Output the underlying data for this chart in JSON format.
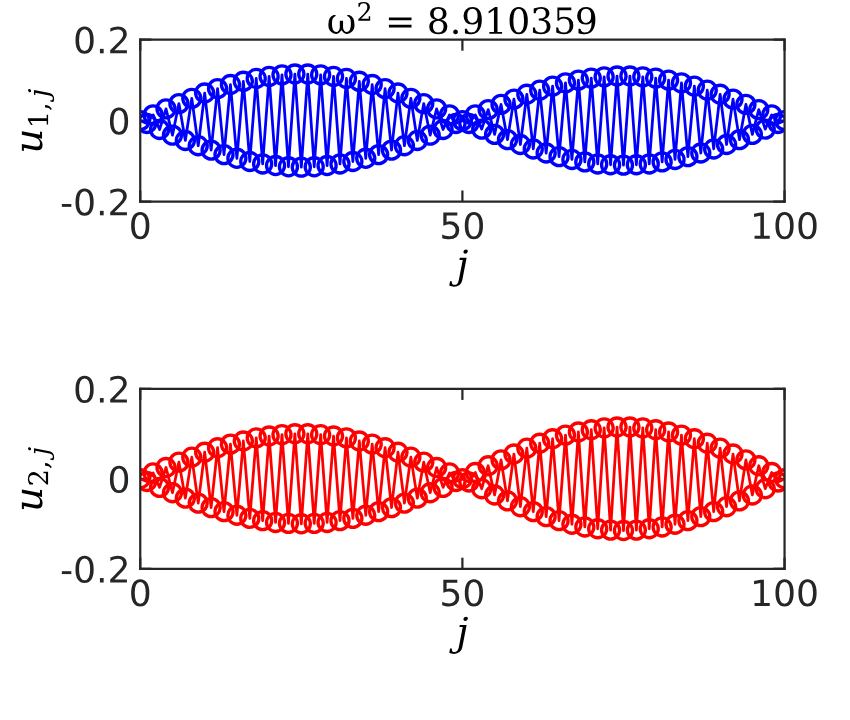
{
  "chart_data": [
    {
      "type": "line",
      "title": "ω$^{2}$ = 8.910359",
      "xlabel": "j",
      "ylabel": "u$_{1,j}$",
      "xlim": [
        0,
        100
      ],
      "ylim": [
        -0.2,
        0.2
      ],
      "xticks": [
        0,
        50,
        100
      ],
      "yticks": [
        -0.2,
        0,
        0.2
      ],
      "marker": "circle",
      "line_style": "solid",
      "grid": false,
      "x": [
        0,
        1,
        2,
        3,
        4,
        5,
        6,
        7,
        8,
        9,
        10,
        11,
        12,
        13,
        14,
        15,
        16,
        17,
        18,
        19,
        20,
        21,
        22,
        23,
        24,
        25,
        26,
        27,
        28,
        29,
        30,
        31,
        32,
        33,
        34,
        35,
        36,
        37,
        38,
        39,
        40,
        41,
        42,
        43,
        44,
        45,
        46,
        47,
        48,
        49,
        50,
        51,
        52,
        53,
        54,
        55,
        56,
        57,
        58,
        59,
        60,
        61,
        62,
        63,
        64,
        65,
        66,
        67,
        68,
        69,
        70,
        71,
        72,
        73,
        74,
        75,
        76,
        77,
        78,
        79,
        80,
        81,
        82,
        83,
        84,
        85,
        86,
        87,
        88,
        89,
        90,
        91,
        92,
        93,
        94,
        95,
        96,
        97,
        98,
        99,
        100
      ],
      "series": [
        {
          "color": "#0000ff",
          "values": [
            0,
            -0.007,
            0.014,
            -0.022,
            0.029,
            -0.036,
            0.042,
            -0.049,
            0.055,
            -0.062,
            0.068,
            -0.073,
            0.079,
            -0.084,
            0.089,
            -0.093,
            0.097,
            -0.101,
            0.104,
            -0.107,
            0.109,
            -0.111,
            0.113,
            -0.114,
            0.115,
            -0.115,
            0.115,
            -0.114,
            0.113,
            -0.111,
            0.109,
            -0.107,
            0.104,
            -0.101,
            0.097,
            -0.093,
            0.089,
            -0.084,
            0.079,
            -0.073,
            0.068,
            -0.062,
            0.055,
            -0.049,
            0.042,
            -0.036,
            0.029,
            -0.022,
            0.014,
            -0.007,
            0,
            -0.007,
            0.014,
            -0.021,
            0.027,
            -0.034,
            0.04,
            -0.047,
            0.053,
            -0.059,
            0.065,
            -0.07,
            0.075,
            -0.08,
            0.085,
            -0.089,
            0.093,
            -0.096,
            0.1,
            -0.102,
            0.105,
            -0.107,
            0.108,
            -0.109,
            0.11,
            -0.11,
            0.11,
            -0.109,
            0.108,
            -0.107,
            0.105,
            -0.102,
            0.1,
            -0.096,
            0.093,
            -0.089,
            0.085,
            -0.08,
            0.075,
            -0.07,
            0.065,
            -0.059,
            0.053,
            -0.047,
            0.04,
            -0.034,
            0.027,
            -0.021,
            0.014,
            -0.007,
            0
          ]
        }
      ]
    },
    {
      "type": "line",
      "xlabel": "j",
      "ylabel": "u$_{2,j}$",
      "xlim": [
        0,
        100
      ],
      "ylim": [
        -0.2,
        0.2
      ],
      "xticks": [
        0,
        50,
        100
      ],
      "yticks": [
        -0.2,
        0,
        0.2
      ],
      "marker": "circle",
      "line_style": "solid",
      "grid": false,
      "x": [
        0,
        1,
        2,
        3,
        4,
        5,
        6,
        7,
        8,
        9,
        10,
        11,
        12,
        13,
        14,
        15,
        16,
        17,
        18,
        19,
        20,
        21,
        22,
        23,
        24,
        25,
        26,
        27,
        28,
        29,
        30,
        31,
        32,
        33,
        34,
        35,
        36,
        37,
        38,
        39,
        40,
        41,
        42,
        43,
        44,
        45,
        46,
        47,
        48,
        49,
        50,
        51,
        52,
        53,
        54,
        55,
        56,
        57,
        58,
        59,
        60,
        61,
        62,
        63,
        64,
        65,
        66,
        67,
        68,
        69,
        70,
        71,
        72,
        73,
        74,
        75,
        76,
        77,
        78,
        79,
        80,
        81,
        82,
        83,
        84,
        85,
        86,
        87,
        88,
        89,
        90,
        91,
        92,
        93,
        94,
        95,
        96,
        97,
        98,
        99,
        100
      ],
      "series": [
        {
          "color": "#ff0000",
          "values": [
            0,
            -0.006,
            0.013,
            -0.019,
            0.025,
            -0.031,
            0.037,
            -0.043,
            0.048,
            -0.054,
            0.059,
            -0.064,
            0.069,
            -0.073,
            0.077,
            -0.081,
            0.084,
            -0.088,
            0.091,
            -0.093,
            0.095,
            -0.097,
            0.098,
            -0.099,
            0.1,
            -0.1,
            0.1,
            -0.099,
            0.098,
            -0.097,
            0.095,
            -0.093,
            0.091,
            -0.088,
            0.084,
            -0.081,
            0.077,
            -0.073,
            0.069,
            -0.064,
            0.059,
            -0.054,
            0.048,
            -0.043,
            0.037,
            -0.031,
            0.025,
            -0.019,
            0.013,
            -0.006,
            0,
            -0.007,
            0.014,
            -0.022,
            0.029,
            -0.036,
            0.042,
            -0.049,
            0.055,
            -0.062,
            0.068,
            -0.073,
            0.079,
            -0.084,
            0.089,
            -0.093,
            0.097,
            -0.101,
            0.104,
            -0.107,
            0.109,
            -0.111,
            0.113,
            -0.114,
            0.115,
            -0.115,
            0.115,
            -0.114,
            0.113,
            -0.111,
            0.109,
            -0.107,
            0.104,
            -0.101,
            0.097,
            -0.093,
            0.089,
            -0.084,
            0.079,
            -0.073,
            0.068,
            -0.062,
            0.055,
            -0.049,
            0.042,
            -0.036,
            0.029,
            -0.022,
            0.014,
            -0.007,
            0
          ]
        }
      ]
    }
  ]
}
